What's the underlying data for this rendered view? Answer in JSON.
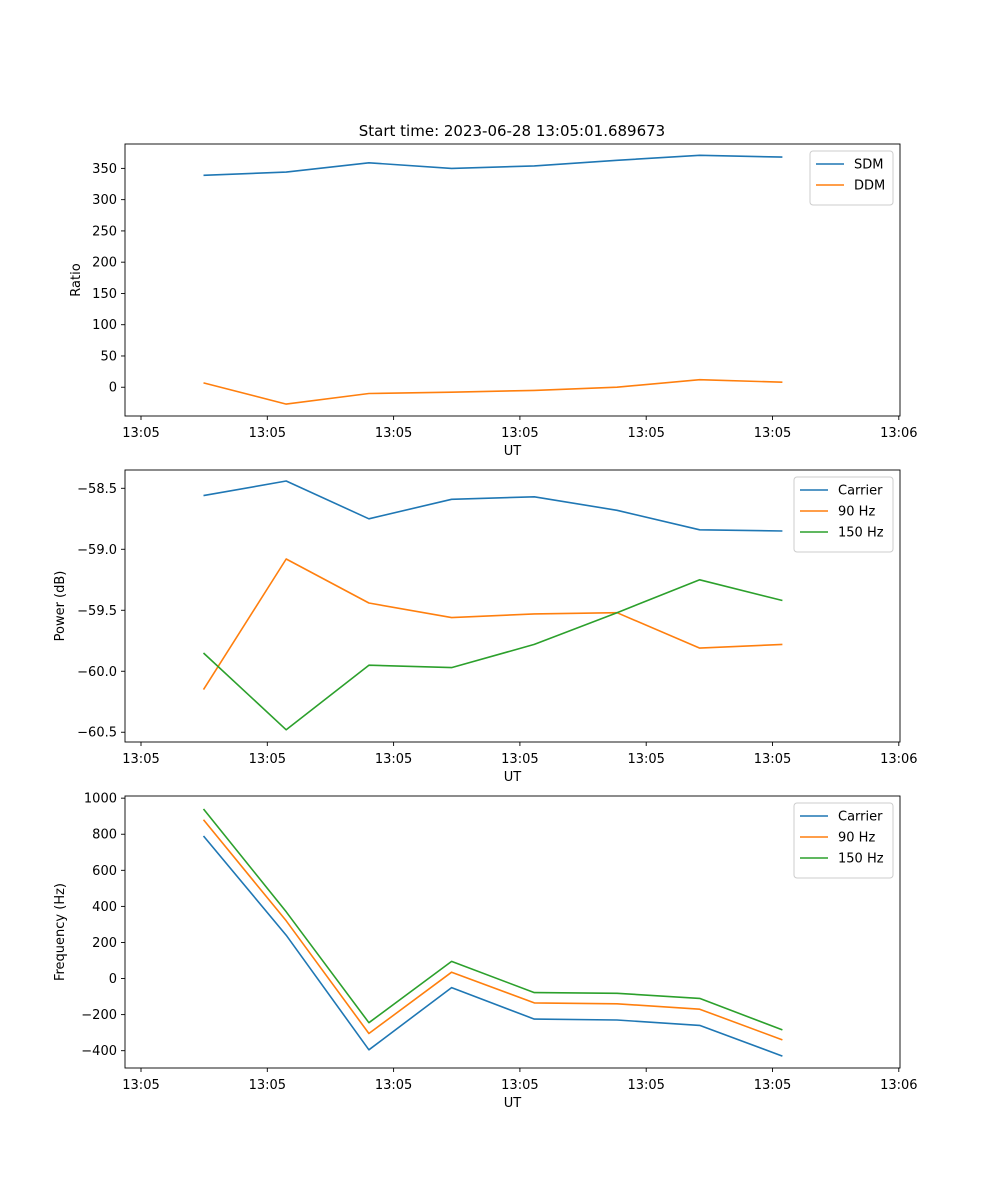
{
  "figure": {
    "title": "Start time: 2023-06-28 13:05:01.689673"
  },
  "colors": {
    "blue": "#1f77b4",
    "orange": "#ff7f0e",
    "green": "#2ca02c"
  },
  "chart_data": [
    {
      "type": "line",
      "title": "Start time: 2023-06-28 13:05:01.689673",
      "xlabel": "UT",
      "ylabel": "Ratio",
      "x_tick_labels": [
        "13:05",
        "13:05",
        "13:05",
        "13:05",
        "13:05",
        "13:05",
        "13:06"
      ],
      "y_ticks": [
        0,
        50,
        100,
        150,
        200,
        250,
        300,
        350
      ],
      "ylim": [
        -46,
        389
      ],
      "legend": "top-right",
      "grid": false,
      "series": [
        {
          "name": "SDM",
          "color": "#1f77b4",
          "values": [
            339,
            344,
            359,
            350,
            354,
            363,
            371,
            368
          ]
        },
        {
          "name": "DDM",
          "color": "#ff7f0e",
          "values": [
            7,
            -27,
            -10,
            -8,
            -5,
            0,
            12,
            8
          ]
        }
      ]
    },
    {
      "type": "line",
      "xlabel": "UT",
      "ylabel": "Power (dB)",
      "x_tick_labels": [
        "13:05",
        "13:05",
        "13:05",
        "13:05",
        "13:05",
        "13:05",
        "13:06"
      ],
      "y_ticks": [
        -60.5,
        -60.0,
        -59.5,
        -59.0,
        -58.5
      ],
      "y_tick_labels": [
        "−60.5",
        "−60.0",
        "−59.5",
        "−59.0",
        "−58.5"
      ],
      "ylim": [
        -60.58,
        -58.35
      ],
      "legend": "top-right",
      "grid": false,
      "series": [
        {
          "name": "Carrier",
          "color": "#1f77b4",
          "values": [
            -58.56,
            -58.44,
            -58.75,
            -58.59,
            -58.57,
            -58.68,
            -58.84,
            -58.85
          ]
        },
        {
          "name": "90 Hz",
          "color": "#ff7f0e",
          "values": [
            -60.15,
            -59.08,
            -59.44,
            -59.56,
            -59.53,
            -59.52,
            -59.81,
            -59.78
          ]
        },
        {
          "name": "150 Hz",
          "color": "#2ca02c",
          "values": [
            -59.85,
            -60.48,
            -59.95,
            -59.97,
            -59.78,
            -59.52,
            -59.25,
            -59.42
          ]
        }
      ]
    },
    {
      "type": "line",
      "xlabel": "UT",
      "ylabel": "Frequency (Hz)",
      "x_tick_labels": [
        "13:05",
        "13:05",
        "13:05",
        "13:05",
        "13:05",
        "13:05",
        "13:06"
      ],
      "y_ticks": [
        -400,
        -200,
        0,
        200,
        400,
        600,
        800,
        1000
      ],
      "y_tick_labels": [
        "−400",
        "−200",
        "0",
        "200",
        "400",
        "600",
        "800",
        "1000"
      ],
      "ylim": [
        -496,
        1012
      ],
      "legend": "top-right",
      "grid": false,
      "series": [
        {
          "name": "Carrier",
          "color": "#1f77b4",
          "values": [
            790,
            240,
            -395,
            -50,
            -225,
            -230,
            -260,
            -430
          ]
        },
        {
          "name": "90 Hz",
          "color": "#ff7f0e",
          "values": [
            880,
            320,
            -305,
            35,
            -135,
            -140,
            -170,
            -340
          ]
        },
        {
          "name": "150 Hz",
          "color": "#2ca02c",
          "values": [
            940,
            370,
            -245,
            95,
            -78,
            -82,
            -110,
            -285
          ]
        }
      ]
    }
  ]
}
